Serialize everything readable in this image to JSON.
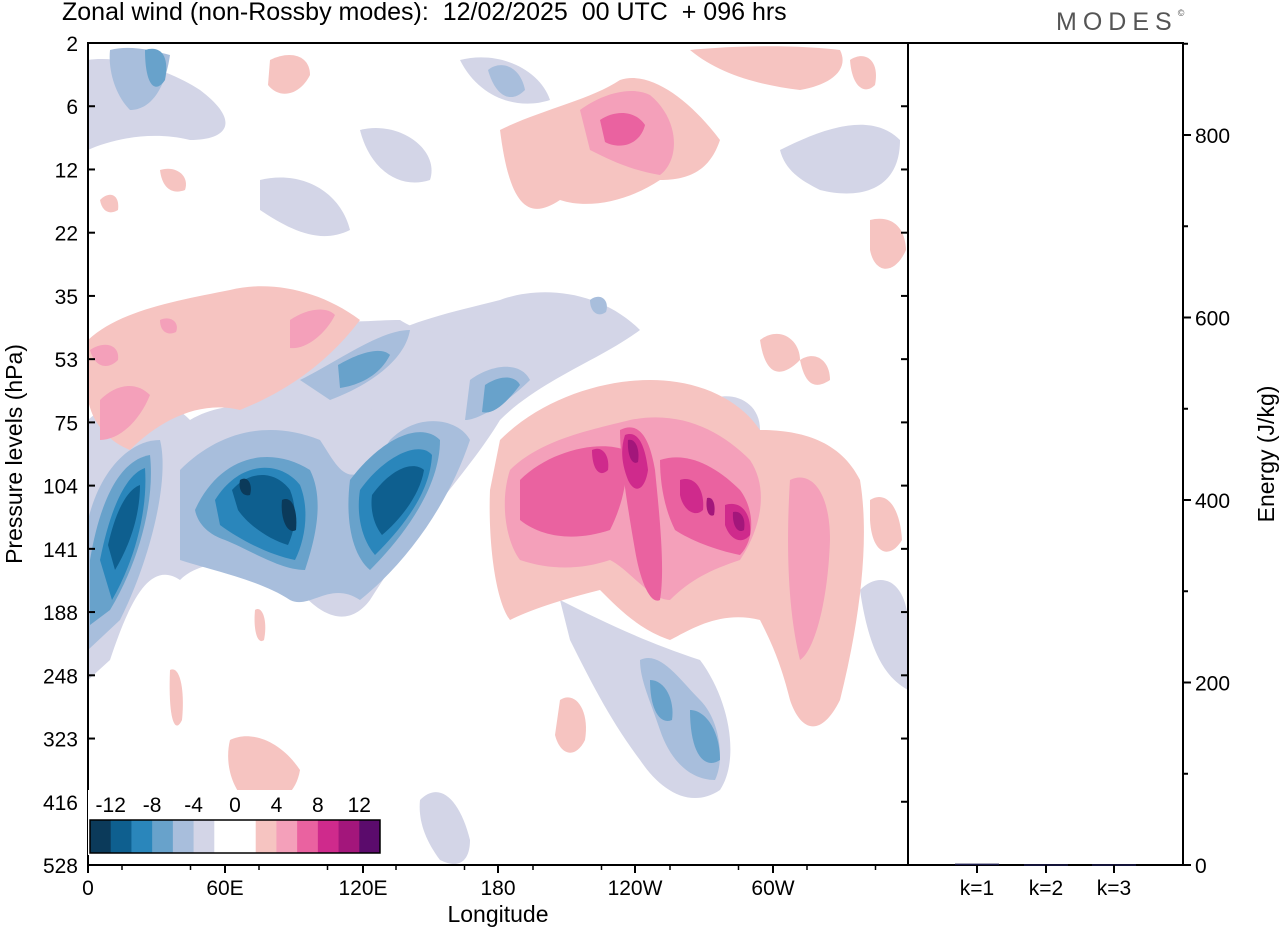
{
  "header": {
    "title": "Zonal wind (non-Rossby modes):  12/02/2025  00 UTC  + 096 hrs",
    "logo": "MODES",
    "logo_mark": "©"
  },
  "colors": {
    "scale": [
      "#0b3a5a",
      "#0e5f8f",
      "#2a86bb",
      "#68a2cb",
      "#a8bedc",
      "#d3d5e7",
      "#ffffff",
      "#ffffff",
      "#f6c4c1",
      "#f4a0ba",
      "#ea62a0",
      "#cf2a8c",
      "#a3167b",
      "#5b0b6c"
    ],
    "bar": "#1a1a4a"
  },
  "chart_data": [
    {
      "type": "heatmap",
      "title": "Zonal wind (non-Rossby modes):  12/02/2025  00 UTC  + 096 hrs",
      "xlabel": "Longitude",
      "ylabel": "Pressure levels (hPa)",
      "x_ticks": [
        "0",
        "60E",
        "120E",
        "180",
        "120W",
        "60W"
      ],
      "y_ticks": [
        "2",
        "6",
        "12",
        "22",
        "35",
        "53",
        "75",
        "104",
        "141",
        "188",
        "248",
        "323",
        "416",
        "528"
      ],
      "colorbar": {
        "tick_labels": [
          "-12",
          "-8",
          "-4",
          "0",
          "4",
          "8",
          "12"
        ],
        "levels": [
          -14,
          -12,
          -10,
          -8,
          -6,
          -4,
          -2,
          0,
          2,
          4,
          6,
          8,
          10,
          12,
          14
        ]
      },
      "features": [
        {
          "lon": 15,
          "level": "141",
          "value": -10
        },
        {
          "lon": 35,
          "level": "2",
          "value": -6
        },
        {
          "lon": 68,
          "level": "104",
          "value": -12
        },
        {
          "lon": 90,
          "level": "141",
          "value": -12
        },
        {
          "lon": 128,
          "level": "104",
          "value": -12
        },
        {
          "lon": 175,
          "level": "53",
          "value": -4
        },
        {
          "lon": 212,
          "level": "104",
          "value": 8
        },
        {
          "lon": 237,
          "level": "104",
          "value": 10
        },
        {
          "lon": 272,
          "level": "104",
          "value": 12
        },
        {
          "lon": 240,
          "level": "6",
          "value": 6
        },
        {
          "lon": 15,
          "level": "75",
          "value": 6
        },
        {
          "lon": 315,
          "level": "188",
          "value": 6
        },
        {
          "lon": 260,
          "level": "323",
          "value": -4
        }
      ]
    },
    {
      "type": "bar",
      "categories": [
        "k=1",
        "k=2",
        "k=3"
      ],
      "values": [
        1.5,
        0.8,
        0.8
      ],
      "ylabel": "Energy (J/kg)",
      "ylim": [
        0,
        900
      ],
      "y_ticks": [
        0,
        200,
        400,
        600,
        800
      ]
    }
  ]
}
